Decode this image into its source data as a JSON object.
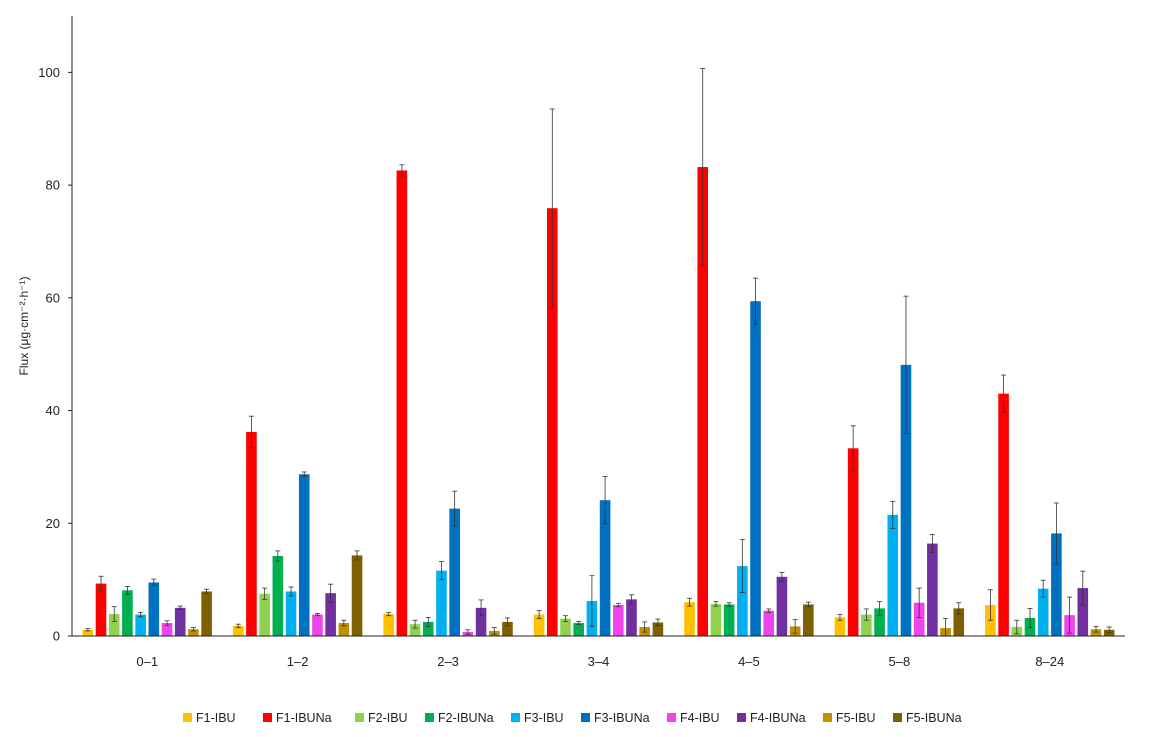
{
  "chart_data": {
    "type": "bar",
    "ylabel": "Flux (μg·cm⁻²·h⁻¹)",
    "ylim": [
      0,
      110
    ],
    "yticks": [
      0,
      20,
      40,
      60,
      80,
      100
    ],
    "grid": false,
    "legend_position": "bottom",
    "categories": [
      "0–1",
      "1–2",
      "2–3",
      "3–4",
      "4–5",
      "5–8",
      "8–24"
    ],
    "series": [
      {
        "name": "F1-IBU",
        "color": "#FFC000",
        "values": [
          1.1,
          1.8,
          3.9,
          3.8,
          6.0,
          3.3,
          5.5
        ],
        "errors": [
          0.2,
          0.3,
          0.3,
          0.7,
          0.7,
          0.5,
          2.7
        ]
      },
      {
        "name": "F1-IBUNa",
        "color": "#FF0000",
        "values": [
          9.3,
          36.2,
          82.6,
          75.9,
          83.2,
          33.3,
          43.0
        ],
        "errors": [
          1.3,
          2.8,
          1.0,
          17.6,
          17.5,
          4.0,
          3.3
        ]
      },
      {
        "name": "F2-IBU",
        "color": "#92D050",
        "values": [
          3.9,
          7.5,
          2.1,
          3.1,
          5.7,
          3.8,
          1.6
        ],
        "errors": [
          1.3,
          1.0,
          0.7,
          0.5,
          0.4,
          1.0,
          1.2
        ]
      },
      {
        "name": "F2-IBUNa",
        "color": "#00B050",
        "values": [
          8.1,
          14.2,
          2.5,
          2.3,
          5.6,
          4.9,
          3.2
        ],
        "errors": [
          0.7,
          0.9,
          0.8,
          0.3,
          0.3,
          1.2,
          1.7
        ]
      },
      {
        "name": "F3-IBU",
        "color": "#00B0F0",
        "values": [
          3.8,
          7.9,
          11.6,
          6.2,
          12.4,
          21.5,
          8.4
        ],
        "errors": [
          0.4,
          0.8,
          1.6,
          4.5,
          4.7,
          2.4,
          1.5
        ]
      },
      {
        "name": "F3-IBUNa",
        "color": "#0070C0",
        "values": [
          9.5,
          28.7,
          22.6,
          24.1,
          59.4,
          48.1,
          18.2
        ],
        "errors": [
          0.6,
          0.4,
          3.1,
          4.2,
          4.1,
          12.2,
          5.4
        ]
      },
      {
        "name": "F4-IBU",
        "color": "#EE44EE",
        "values": [
          2.3,
          3.8,
          0.7,
          5.5,
          4.5,
          5.9,
          3.7
        ],
        "errors": [
          0.4,
          0.2,
          0.4,
          0.3,
          0.3,
          2.6,
          3.2
        ]
      },
      {
        "name": "F4-IBUNa",
        "color": "#7030A0",
        "values": [
          5.0,
          7.6,
          5.0,
          6.5,
          10.5,
          16.4,
          8.5
        ],
        "errors": [
          0.3,
          1.6,
          1.4,
          0.8,
          0.8,
          1.6,
          3.0
        ]
      },
      {
        "name": "F5-IBU",
        "color": "#BF9000",
        "values": [
          1.2,
          2.3,
          0.9,
          1.6,
          1.7,
          1.4,
          1.2
        ],
        "errors": [
          0.3,
          0.5,
          0.6,
          0.9,
          1.2,
          1.7,
          0.5
        ]
      },
      {
        "name": "F5-IBUNa",
        "color": "#7F6000",
        "values": [
          7.9,
          14.3,
          2.5,
          2.4,
          5.6,
          4.9,
          1.1
        ],
        "errors": [
          0.4,
          0.8,
          0.7,
          0.6,
          0.4,
          1.0,
          0.5
        ]
      }
    ]
  }
}
